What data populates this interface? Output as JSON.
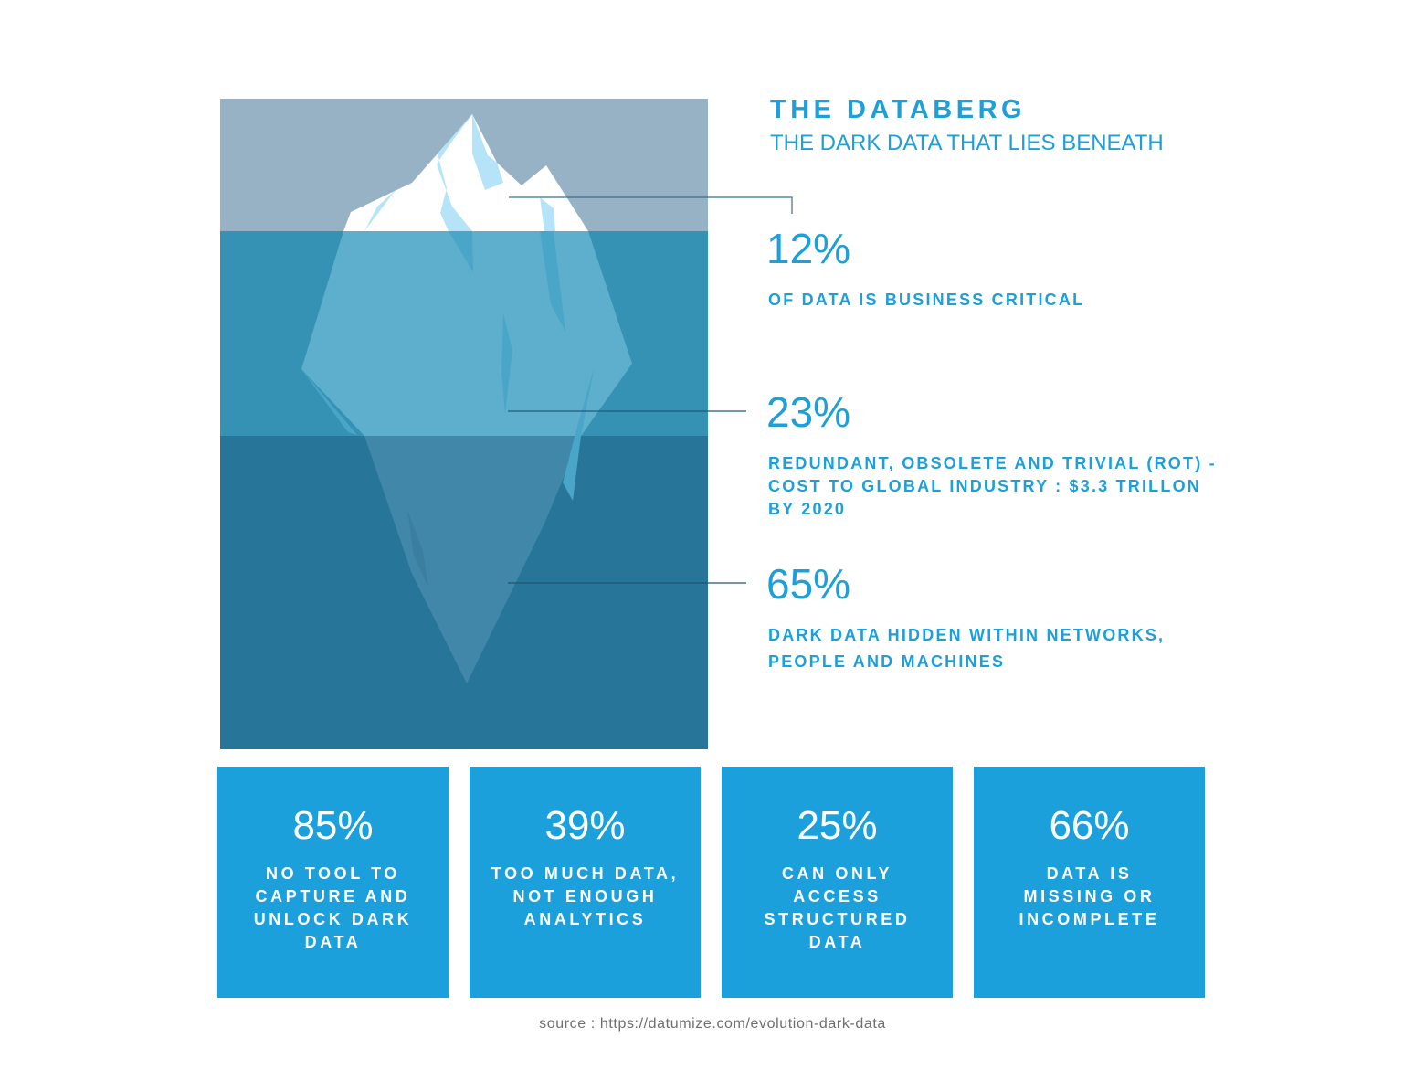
{
  "header": {
    "title": "THE DATABERG",
    "subtitle": "THE DARK DATA THAT LIES BENEATH"
  },
  "stats": [
    {
      "value": "12%",
      "description": "OF DATA IS BUSINESS CRITICAL"
    },
    {
      "value": "23%",
      "description": "REDUNDANT, OBSOLETE AND TRIVIAL (ROT) -\nCOST TO GLOBAL INDUSTRY : $3.3 TRILLON\nBY 2020"
    },
    {
      "value": "65%",
      "description": "DARK DATA HIDDEN WITHIN NETWORKS,\nPEOPLE AND MACHINES"
    }
  ],
  "cards": [
    {
      "value": "85%",
      "label": "NO TOOL TO\nCAPTURE AND\nUNLOCK DARK\nDATA"
    },
    {
      "value": "39%",
      "label": "TOO MUCH DATA,\nNOT ENOUGH\nANALYTICS"
    },
    {
      "value": "25%",
      "label": "CAN ONLY\nACCESS\nSTRUCTURED\nDATA"
    },
    {
      "value": "66%",
      "label": "DATA IS\nMISSING OR\nINCOMPLETE"
    }
  ],
  "source": "source : https://datumize.com/evolution-dark-data",
  "colors": {
    "accent": "#1d9fd9",
    "card_background": "#1ca0dc",
    "sky": "#98b2c5",
    "water_upper": "#3592b4",
    "water_lower": "#277699",
    "source_text": "#6f6f6f"
  }
}
